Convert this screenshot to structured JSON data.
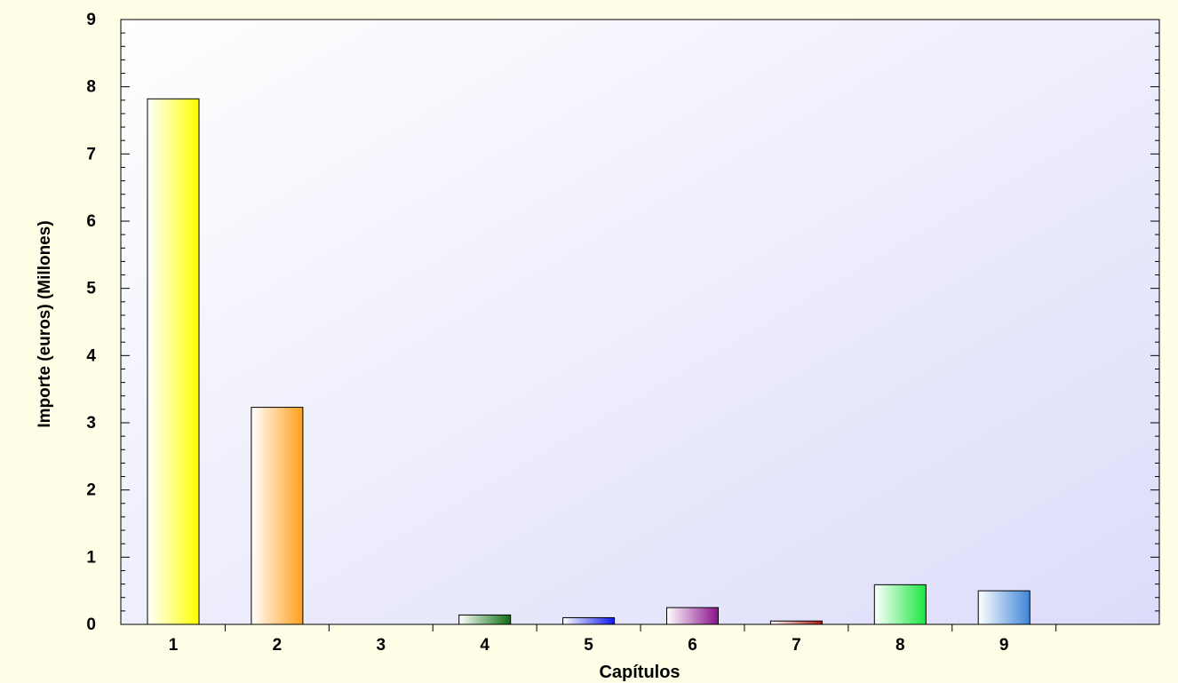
{
  "chart_data": {
    "type": "bar",
    "categories": [
      "1",
      "2",
      "3",
      "4",
      "5",
      "6",
      "7",
      "8",
      "9"
    ],
    "values": [
      7.82,
      3.23,
      0,
      0.14,
      0.1,
      0.25,
      0.05,
      0.59,
      0.5
    ],
    "colors": [
      "#ffff00",
      "#ff9f1a",
      "#e8e8e8",
      "#0f6e12",
      "#0f18e6",
      "#8a0f8c",
      "#b01a14",
      "#1ae640",
      "#3f85d8"
    ],
    "xlabel": "Capítulos",
    "ylabel": "Importe (euros) (Millones)",
    "ylim": [
      0,
      9
    ],
    "yticks": [
      0,
      1,
      2,
      3,
      4,
      5,
      6,
      7,
      8,
      9
    ],
    "grid": false,
    "legend": "none",
    "plot_background": [
      "#ffffff",
      "#dcdcfa"
    ],
    "page_background": "#fefee6"
  }
}
